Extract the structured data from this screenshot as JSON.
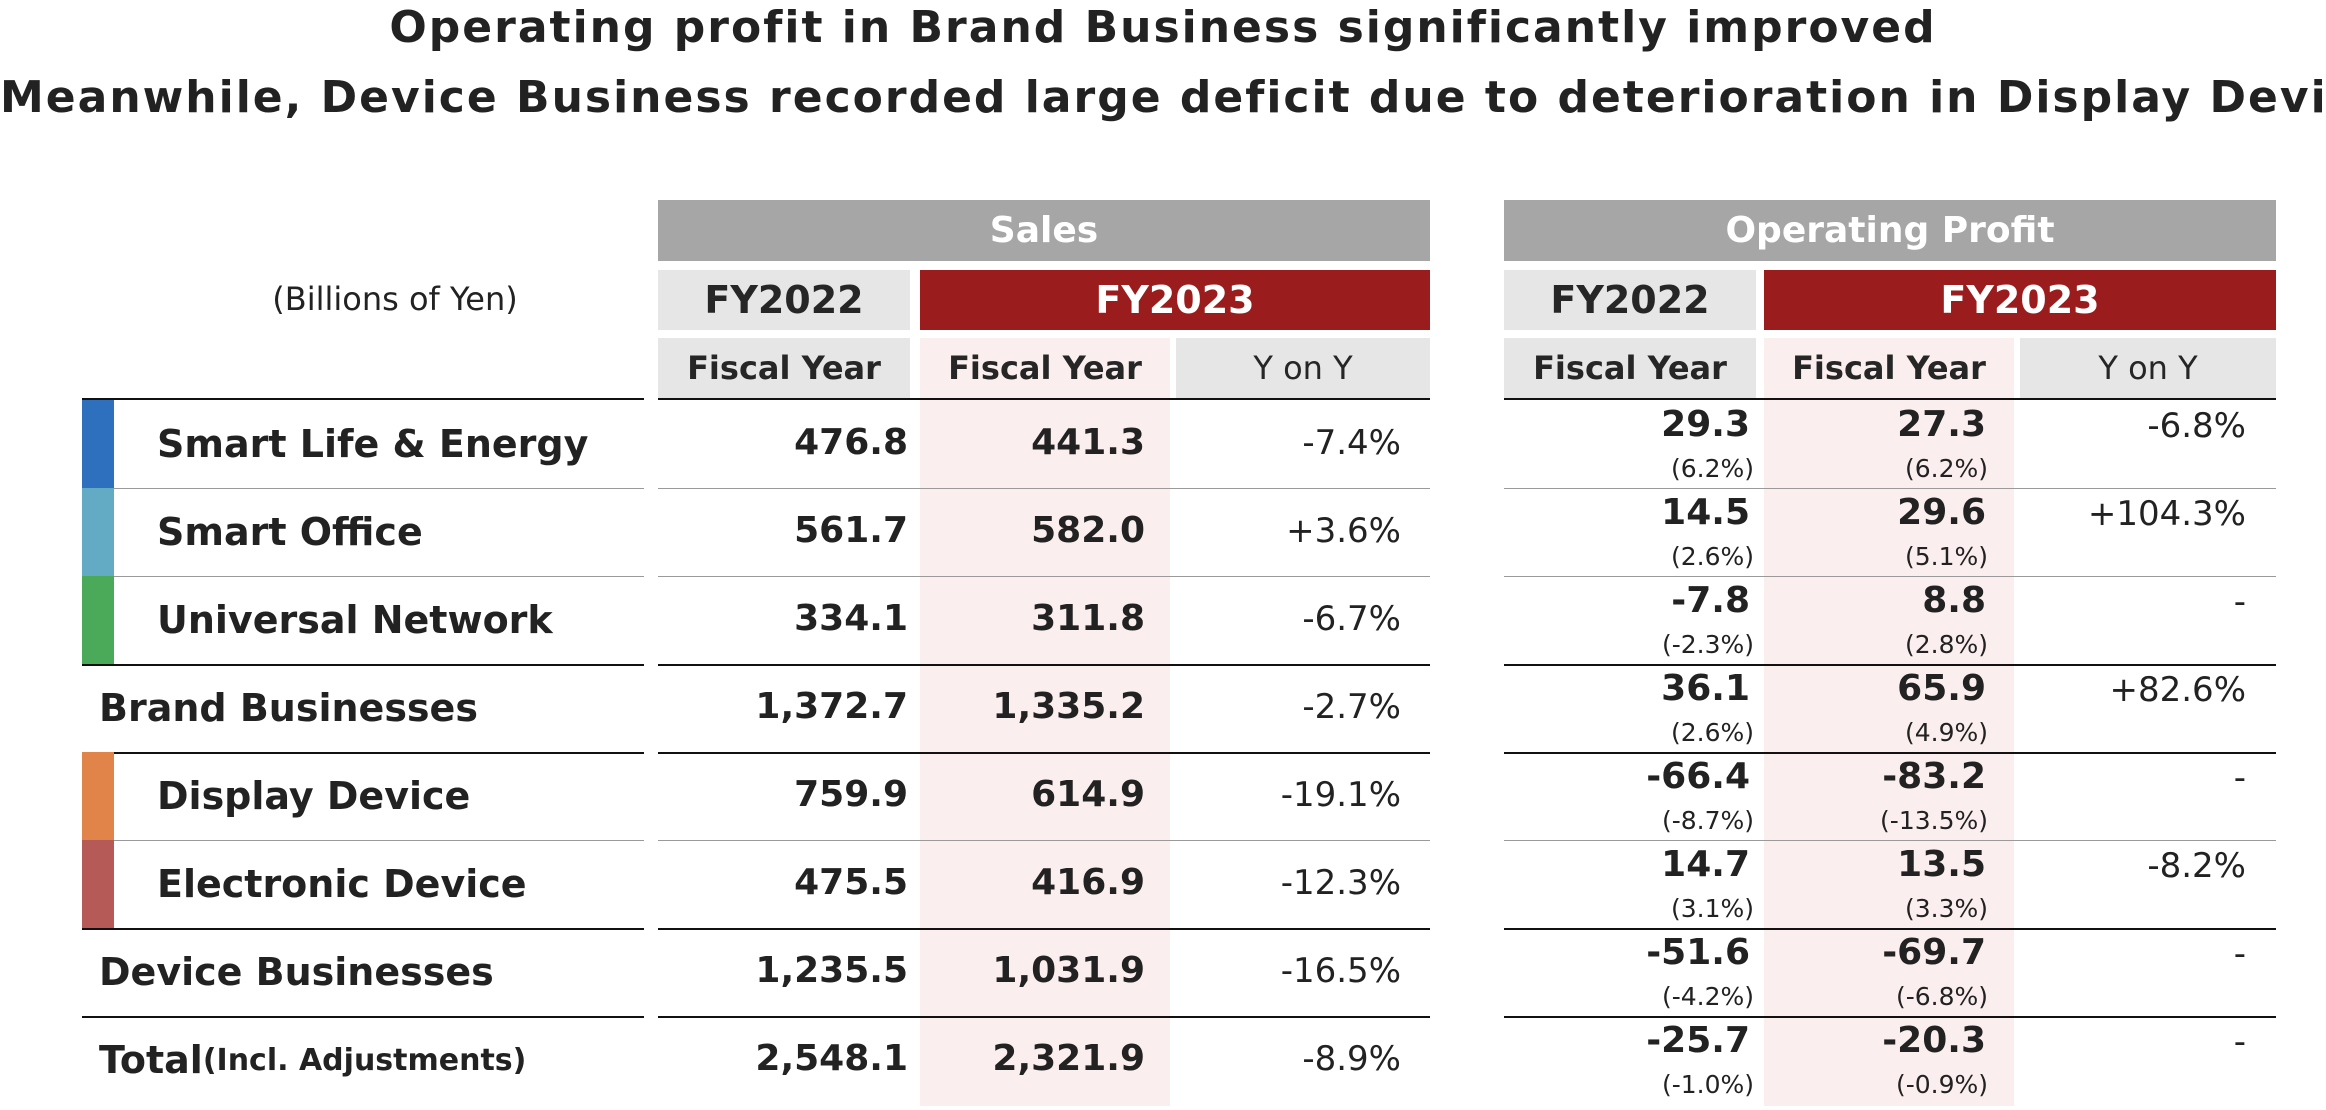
{
  "title_line1": "Operating profit in Brand Business significantly improved",
  "title_line2": "Meanwhile, Device Business recorded large deficit due to deterioration in Display Device",
  "units": "(Billions of Yen)",
  "sales_header": "Sales",
  "op_header": "Operating Profit",
  "fy_prev": "FY2022",
  "fy_curr": "FY2023",
  "fiscal_year_label": "Fiscal Year",
  "yoy_label": "Y on Y",
  "colors": {
    "smart_life": "#2e6fbe",
    "smart_office": "#63aac5",
    "universal_network": "#4aaa5a",
    "display_device": "#e0844a",
    "electronic_device": "#b55a57",
    "fy2023_header": "#9b1c1c",
    "section_header": "#a6a6a6"
  },
  "rows": [
    {
      "label": "Smart Life & Energy",
      "label_suffix": "",
      "bar": "smart_life",
      "s22": "476.8",
      "s23": "441.3",
      "syoy": "-7.4%",
      "o22": "29.3",
      "o22m": "(6.2%)",
      "o23": "27.3",
      "o23m": "(6.2%)",
      "oyoy": "-6.8%"
    },
    {
      "label": "Smart Office",
      "label_suffix": "",
      "bar": "smart_office",
      "s22": "561.7",
      "s23": "582.0",
      "syoy": "+3.6%",
      "o22": "14.5",
      "o22m": "(2.6%)",
      "o23": "29.6",
      "o23m": "(5.1%)",
      "oyoy": "+104.3%"
    },
    {
      "label": "Universal Network",
      "label_suffix": "",
      "bar": "universal_network",
      "s22": "334.1",
      "s23": "311.8",
      "syoy": "-6.7%",
      "o22": "-7.8",
      "o22m": "(-2.3%)",
      "o23": "8.8",
      "o23m": "(2.8%)",
      "oyoy": "-"
    },
    {
      "label": "Brand Businesses",
      "label_suffix": "",
      "bar": "",
      "s22": "1,372.7",
      "s23": "1,335.2",
      "syoy": "-2.7%",
      "o22": "36.1",
      "o22m": "(2.6%)",
      "o23": "65.9",
      "o23m": "(4.9%)",
      "oyoy": "+82.6%"
    },
    {
      "label": "Display Device",
      "label_suffix": "",
      "bar": "display_device",
      "s22": "759.9",
      "s23": "614.9",
      "syoy": "-19.1%",
      "o22": "-66.4",
      "o22m": "(-8.7%)",
      "o23": "-83.2",
      "o23m": "(-13.5%)",
      "oyoy": "-"
    },
    {
      "label": "Electronic Device",
      "label_suffix": "",
      "bar": "electronic_device",
      "s22": "475.5",
      "s23": "416.9",
      "syoy": "-12.3%",
      "o22": "14.7",
      "o22m": "(3.1%)",
      "o23": "13.5",
      "o23m": "(3.3%)",
      "oyoy": "-8.2%"
    },
    {
      "label": "Device Businesses",
      "label_suffix": "",
      "bar": "",
      "s22": "1,235.5",
      "s23": "1,031.9",
      "syoy": "-16.5%",
      "o22": "-51.6",
      "o22m": "(-4.2%)",
      "o23": "-69.7",
      "o23m": "(-6.8%)",
      "oyoy": "-"
    },
    {
      "label": "Total",
      "label_suffix": "(Incl. Adjustments)",
      "bar": "",
      "s22": "2,548.1",
      "s23": "2,321.9",
      "syoy": "-8.9%",
      "o22": "-25.7",
      "o22m": "(-1.0%)",
      "o23": "-20.3",
      "o23m": "(-0.9%)",
      "oyoy": "-"
    }
  ]
}
